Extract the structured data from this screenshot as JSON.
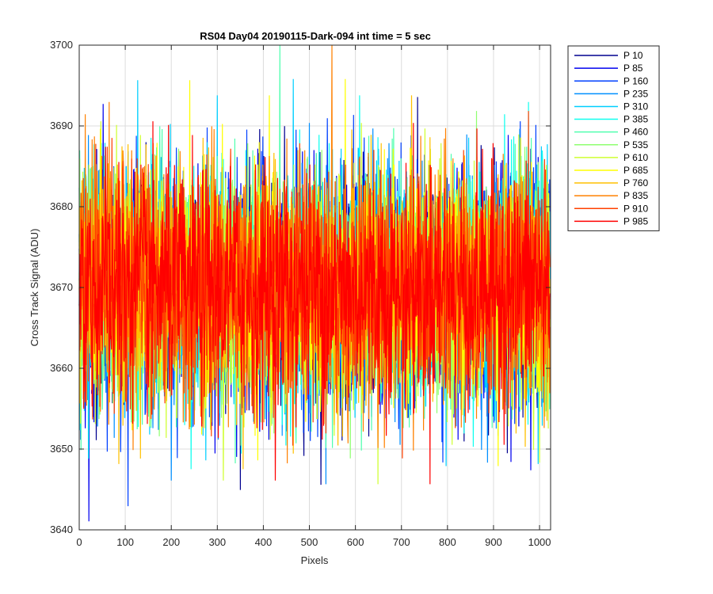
{
  "chart_data": {
    "type": "line",
    "title": "RS04 Day04 20190115-Dark-094 int time = 5 sec",
    "xlabel": "Pixels",
    "ylabel": "Cross Track Signal (ADU)",
    "xlim": [
      0,
      1024
    ],
    "ylim": [
      3640,
      3700
    ],
    "xticks": [
      0,
      100,
      200,
      300,
      400,
      500,
      600,
      700,
      800,
      900,
      1000
    ],
    "yticks": [
      3640,
      3650,
      3660,
      3670,
      3680,
      3690,
      3700
    ],
    "grid": true,
    "legend_position": "outside-top-right",
    "signal": {
      "mean": 3670,
      "std": 7.2,
      "min": 3641,
      "max": 3700,
      "points_per_series": 1024
    },
    "series": [
      {
        "name": "P 10",
        "color": "#00008f"
      },
      {
        "name": "P 85",
        "color": "#0000ef"
      },
      {
        "name": "P 160",
        "color": "#0040ff"
      },
      {
        "name": "P 235",
        "color": "#008fff"
      },
      {
        "name": "P 310",
        "color": "#00cfff"
      },
      {
        "name": "P 385",
        "color": "#10ffef"
      },
      {
        "name": "P 460",
        "color": "#50ffaf"
      },
      {
        "name": "P 535",
        "color": "#8fff70"
      },
      {
        "name": "P 610",
        "color": "#cfff30"
      },
      {
        "name": "P 685",
        "color": "#ffff00"
      },
      {
        "name": "P 760",
        "color": "#ffc000"
      },
      {
        "name": "P 835",
        "color": "#ff8000"
      },
      {
        "name": "P 910",
        "color": "#ff4000"
      },
      {
        "name": "P 985",
        "color": "#ff0000"
      }
    ]
  }
}
